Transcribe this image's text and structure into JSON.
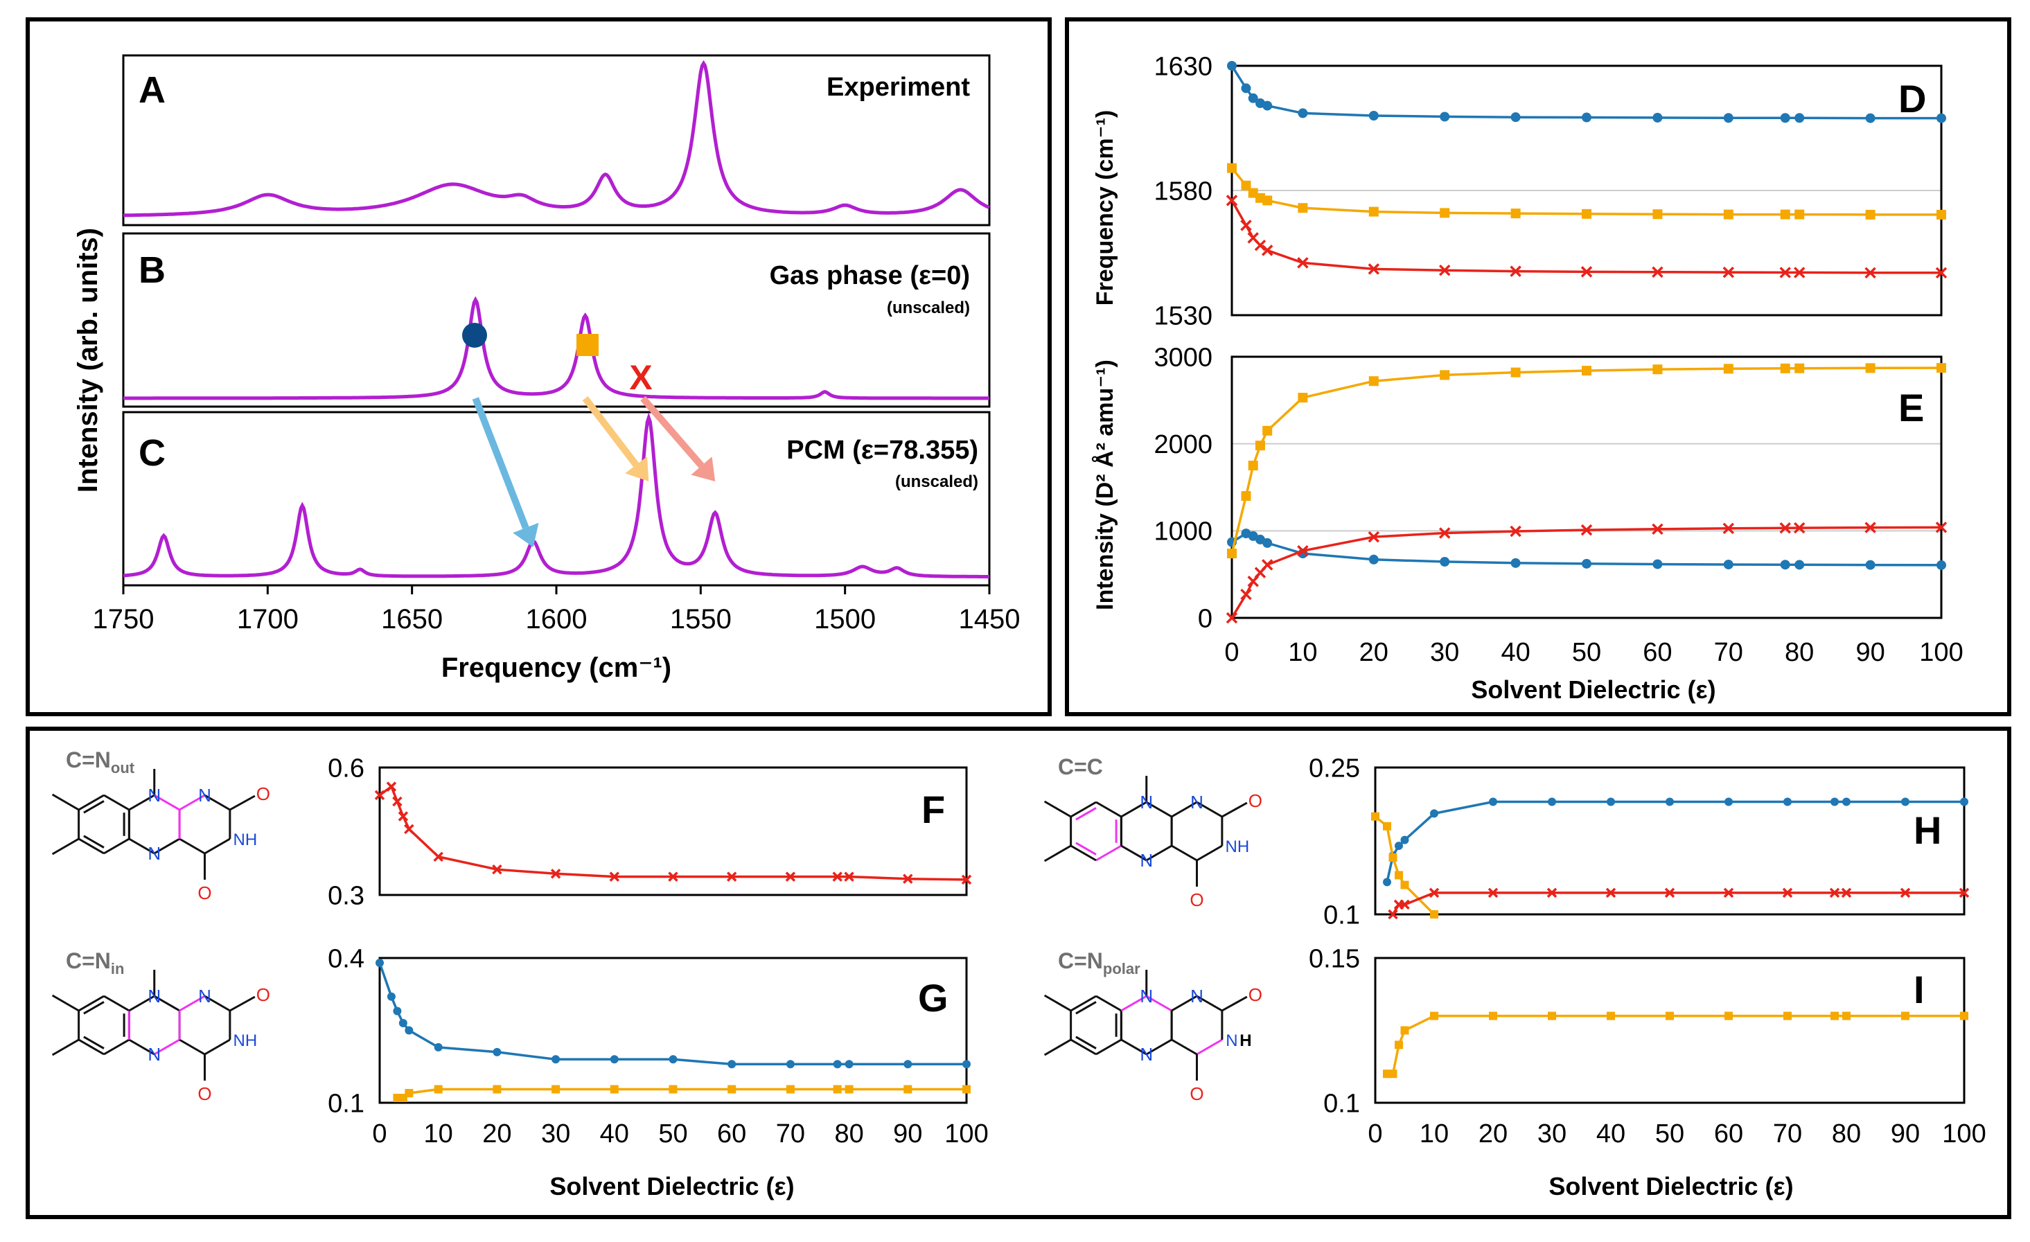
{
  "colors": {
    "blue": "#1f77b4",
    "orange": "#f5a800",
    "red": "#e8231a",
    "purple": "#b21fd1",
    "grid": "#cccccc",
    "mol_blue": "#1a49d8",
    "mol_red": "#e8231a",
    "mol_pink": "#f033f0",
    "gray_label": "#707070"
  },
  "icons": {
    "marker_blue": "circle",
    "marker_orange": "square",
    "marker_red": "x-cross"
  },
  "labels": {
    "panel_A": "A",
    "panel_B": "B",
    "panel_C": "C",
    "panel_D": "D",
    "panel_E": "E",
    "panel_F": "F",
    "panel_G": "G",
    "panel_H": "H",
    "panel_I": "I",
    "exp_title": "Experiment",
    "gas_title": "Gas phase (ε=0)",
    "gas_sub": "(unscaled)",
    "pcm_title": "PCM (ε=78.355)",
    "pcm_sub": "(unscaled)",
    "x_marker": "X",
    "spectra_xlabel": "Frequency (cm⁻¹)",
    "spectra_ylabel": "Intensity (arb. units)",
    "D_ylabel": "Frequency (cm⁻¹)",
    "E_ylabel": "Intensity (D² Å² amu⁻¹)",
    "solvent_xlabel": "Solvent Dielectric (ε)",
    "mol_F_label": "C=N",
    "mol_F_sub": "out",
    "mol_G_label": "C=N",
    "mol_G_sub": "in",
    "mol_H_label": "C=C",
    "mol_I_label": "C=N",
    "mol_I_sub": "polar",
    "atom_N": "N",
    "atom_O": "O",
    "atom_NH": "NH",
    "atom_H": "H"
  },
  "chart_data": [
    {
      "id": "spectra",
      "type": "line",
      "xlabel": "Frequency (cm⁻¹)",
      "ylabel": "Intensity (arb. units)",
      "xlim": [
        1750,
        1450
      ],
      "xticks": [
        1750,
        1700,
        1650,
        1600,
        1550,
        1500,
        1450
      ],
      "panels": [
        {
          "name": "A",
          "title": "Experiment",
          "peaks": [
            [
              1700,
              0.13,
              10
            ],
            [
              1636,
              0.2,
              16
            ],
            [
              1612,
              0.07,
              6
            ],
            [
              1583,
              0.24,
              4
            ],
            [
              1549,
              0.98,
              4
            ],
            [
              1500,
              0.06,
              5
            ],
            [
              1460,
              0.17,
              7
            ]
          ]
        },
        {
          "name": "B",
          "title": "Gas phase (ε=0)",
          "peaks": [
            [
              1628,
              0.62,
              3
            ],
            [
              1590,
              0.52,
              3
            ],
            [
              1507,
              0.04,
              2
            ]
          ]
        },
        {
          "name": "C",
          "title": "PCM (ε=78.355)",
          "peaks": [
            [
              1736,
              0.26,
              2.5
            ],
            [
              1688,
              0.45,
              2.5
            ],
            [
              1668,
              0.04,
              2
            ],
            [
              1608,
              0.22,
              3
            ],
            [
              1568,
              1.0,
              3
            ],
            [
              1545,
              0.39,
              3
            ],
            [
              1494,
              0.06,
              4
            ],
            [
              1482,
              0.05,
              3
            ]
          ]
        }
      ],
      "arrows": [
        {
          "from": 1628,
          "to": 1608,
          "color": "blue"
        },
        {
          "from": 1590,
          "to": 1568,
          "color": "orange"
        },
        {
          "from": 1570,
          "to": 1545,
          "color": "red"
        }
      ]
    },
    {
      "id": "D",
      "type": "line",
      "ylabel": "Frequency (cm⁻¹)",
      "ylim": [
        1530,
        1630
      ],
      "yticks": [
        1530,
        1580,
        1630
      ],
      "xlim": [
        0,
        100
      ],
      "series": [
        {
          "color": "blue",
          "marker": "circle",
          "x": [
            0,
            2,
            3,
            4,
            5,
            10,
            20,
            30,
            40,
            50,
            60,
            70,
            78,
            80,
            90,
            100
          ],
          "y": [
            1630,
            1621,
            1617,
            1615,
            1614,
            1611,
            1610,
            1609.6,
            1609.4,
            1609.3,
            1609.2,
            1609.1,
            1609.1,
            1609.1,
            1609.0,
            1609.0
          ]
        },
        {
          "color": "orange",
          "marker": "square",
          "x": [
            0,
            2,
            3,
            4,
            5,
            10,
            20,
            30,
            40,
            50,
            60,
            70,
            78,
            80,
            90,
            100
          ],
          "y": [
            1589,
            1582,
            1579,
            1577,
            1576,
            1573,
            1571.5,
            1571,
            1570.8,
            1570.6,
            1570.5,
            1570.4,
            1570.4,
            1570.4,
            1570.3,
            1570.3
          ]
        },
        {
          "color": "red",
          "marker": "x",
          "x": [
            0,
            2,
            3,
            4,
            5,
            10,
            20,
            30,
            40,
            50,
            60,
            70,
            78,
            80,
            90,
            100
          ],
          "y": [
            1576,
            1566,
            1561,
            1558,
            1556,
            1551,
            1548.5,
            1548,
            1547.6,
            1547.4,
            1547.3,
            1547.2,
            1547.1,
            1547.1,
            1547.0,
            1547.0
          ]
        }
      ]
    },
    {
      "id": "E",
      "type": "line",
      "ylabel": "Intensity (D² Å² amu⁻¹)",
      "ylim": [
        0,
        3000
      ],
      "yticks": [
        0,
        1000,
        2000,
        3000
      ],
      "xlabel": "Solvent Dielectric (ε)",
      "xlim": [
        0,
        100
      ],
      "xticks": [
        0,
        10,
        20,
        30,
        40,
        50,
        60,
        70,
        80,
        90,
        100
      ],
      "series": [
        {
          "color": "blue",
          "marker": "circle",
          "x": [
            0,
            2,
            3,
            4,
            5,
            10,
            20,
            30,
            40,
            50,
            60,
            70,
            78,
            80,
            90,
            100
          ],
          "y": [
            870,
            970,
            940,
            900,
            860,
            740,
            670,
            645,
            630,
            622,
            617,
            613,
            611,
            610,
            608,
            606
          ]
        },
        {
          "color": "orange",
          "marker": "square",
          "x": [
            0,
            2,
            3,
            4,
            5,
            10,
            20,
            30,
            40,
            50,
            60,
            70,
            78,
            80,
            90,
            100
          ],
          "y": [
            740,
            1400,
            1750,
            1980,
            2150,
            2530,
            2720,
            2790,
            2820,
            2840,
            2855,
            2862,
            2866,
            2867,
            2870,
            2872
          ]
        },
        {
          "color": "red",
          "marker": "x",
          "x": [
            0,
            2,
            3,
            4,
            5,
            10,
            20,
            30,
            40,
            50,
            60,
            70,
            78,
            80,
            90,
            100
          ],
          "y": [
            0,
            270,
            420,
            520,
            610,
            770,
            930,
            975,
            995,
            1010,
            1020,
            1028,
            1033,
            1034,
            1038,
            1040
          ]
        }
      ]
    },
    {
      "id": "F",
      "type": "line",
      "ylim": [
        0.3,
        0.6
      ],
      "yticks": [
        0.3,
        0.6
      ],
      "xlim": [
        0,
        100
      ],
      "series": [
        {
          "color": "red",
          "marker": "x",
          "x": [
            0,
            2,
            3,
            4,
            5,
            10,
            20,
            30,
            40,
            50,
            60,
            70,
            78,
            80,
            90,
            100
          ],
          "y": [
            0.535,
            0.555,
            0.52,
            0.485,
            0.455,
            0.39,
            0.36,
            0.35,
            0.343,
            0.343,
            0.343,
            0.343,
            0.343,
            0.343,
            0.338,
            0.336
          ]
        }
      ]
    },
    {
      "id": "G",
      "type": "line",
      "ylim": [
        0.1,
        0.4
      ],
      "yticks": [
        0.1,
        0.4
      ],
      "xlabel": "Solvent Dielectric (ε)",
      "xlim": [
        0,
        100
      ],
      "xticks": [
        0,
        10,
        20,
        30,
        40,
        50,
        60,
        70,
        80,
        90,
        100
      ],
      "series": [
        {
          "color": "blue",
          "marker": "circle",
          "x": [
            0,
            2,
            3,
            4,
            5,
            10,
            20,
            30,
            40,
            50,
            60,
            70,
            78,
            80,
            90,
            100
          ],
          "y": [
            0.39,
            0.32,
            0.29,
            0.265,
            0.25,
            0.215,
            0.205,
            0.19,
            0.19,
            0.19,
            0.18,
            0.18,
            0.18,
            0.18,
            0.18,
            0.18
          ]
        },
        {
          "color": "orange",
          "marker": "square",
          "x": [
            3,
            4,
            5,
            10,
            20,
            30,
            40,
            50,
            60,
            70,
            78,
            80,
            90,
            100
          ],
          "y": [
            0.11,
            0.11,
            0.12,
            0.128,
            0.128,
            0.128,
            0.128,
            0.128,
            0.128,
            0.128,
            0.128,
            0.128,
            0.128,
            0.128
          ]
        }
      ]
    },
    {
      "id": "H",
      "type": "line",
      "ylim": [
        0.1,
        0.25
      ],
      "yticks": [
        0.1,
        0.25
      ],
      "xlim": [
        0,
        100
      ],
      "series": [
        {
          "color": "blue",
          "marker": "circle",
          "x": [
            2,
            3,
            4,
            5,
            10,
            20,
            30,
            40,
            50,
            60,
            70,
            78,
            80,
            90,
            100
          ],
          "y": [
            0.133,
            0.16,
            0.17,
            0.176,
            0.203,
            0.215,
            0.215,
            0.215,
            0.215,
            0.215,
            0.215,
            0.215,
            0.215,
            0.215,
            0.215
          ]
        },
        {
          "color": "orange",
          "marker": "square",
          "x": [
            0,
            2,
            3,
            4,
            5,
            10
          ],
          "y": [
            0.2,
            0.19,
            0.158,
            0.14,
            0.13,
            0.1
          ]
        },
        {
          "color": "red",
          "marker": "x",
          "x": [
            3,
            4,
            5,
            10,
            20,
            30,
            40,
            50,
            60,
            70,
            78,
            80,
            90,
            100
          ],
          "y": [
            0.1,
            0.11,
            0.11,
            0.122,
            0.122,
            0.122,
            0.122,
            0.122,
            0.122,
            0.122,
            0.122,
            0.122,
            0.122,
            0.122
          ]
        }
      ]
    },
    {
      "id": "I",
      "type": "line",
      "ylim": [
        0.1,
        0.15
      ],
      "yticks": [
        0.1,
        0.15
      ],
      "xlabel": "Solvent Dielectric (ε)",
      "xlim": [
        0,
        100
      ],
      "xticks": [
        0,
        10,
        20,
        30,
        40,
        50,
        60,
        70,
        80,
        90,
        100
      ],
      "series": [
        {
          "color": "orange",
          "marker": "square",
          "x": [
            2,
            3,
            4,
            5,
            10,
            20,
            30,
            40,
            50,
            60,
            70,
            78,
            80,
            90,
            100
          ],
          "y": [
            0.11,
            0.11,
            0.12,
            0.125,
            0.13,
            0.13,
            0.13,
            0.13,
            0.13,
            0.13,
            0.13,
            0.13,
            0.13,
            0.13,
            0.13
          ]
        }
      ]
    }
  ]
}
